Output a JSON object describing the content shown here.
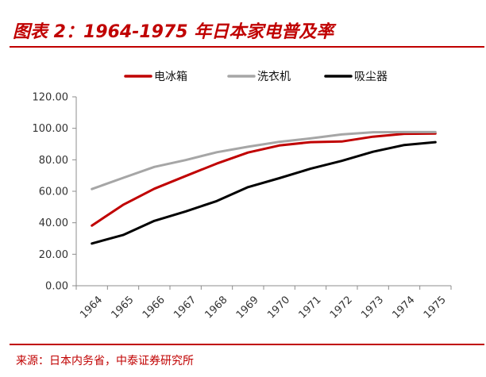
{
  "header": {
    "title": "图表 2：1964-1975 年日本家电普及率"
  },
  "footer": {
    "source": "来源：日本内务省，中泰证券研究所"
  },
  "chart_data": {
    "type": "line",
    "x": [
      "1964",
      "1965",
      "1966",
      "1967",
      "1968",
      "1969",
      "1970",
      "1971",
      "1972",
      "1973",
      "1974",
      "1975"
    ],
    "ylim": [
      0,
      120
    ],
    "yticks": [
      "0.00",
      "20.00",
      "40.00",
      "60.00",
      "80.00",
      "100.00",
      "120.00"
    ],
    "grid": false,
    "legend_position": "top",
    "series": [
      {
        "name": "电冰箱",
        "color": "#c00000",
        "values": [
          38.2,
          51.4,
          61.6,
          69.7,
          77.6,
          84.6,
          89.1,
          91.2,
          91.6,
          94.7,
          96.5,
          96.7
        ]
      },
      {
        "name": "洗衣机",
        "color": "#a6a6a6",
        "values": [
          61.4,
          68.5,
          75.5,
          79.8,
          84.8,
          88.3,
          91.4,
          93.6,
          96.1,
          97.5,
          97.6,
          97.6
        ]
      },
      {
        "name": "吸尘器",
        "color": "#000000",
        "values": [
          26.8,
          32.2,
          41.2,
          47.2,
          53.8,
          62.6,
          68.3,
          74.3,
          79.3,
          85.1,
          89.4,
          91.2
        ]
      }
    ]
  }
}
